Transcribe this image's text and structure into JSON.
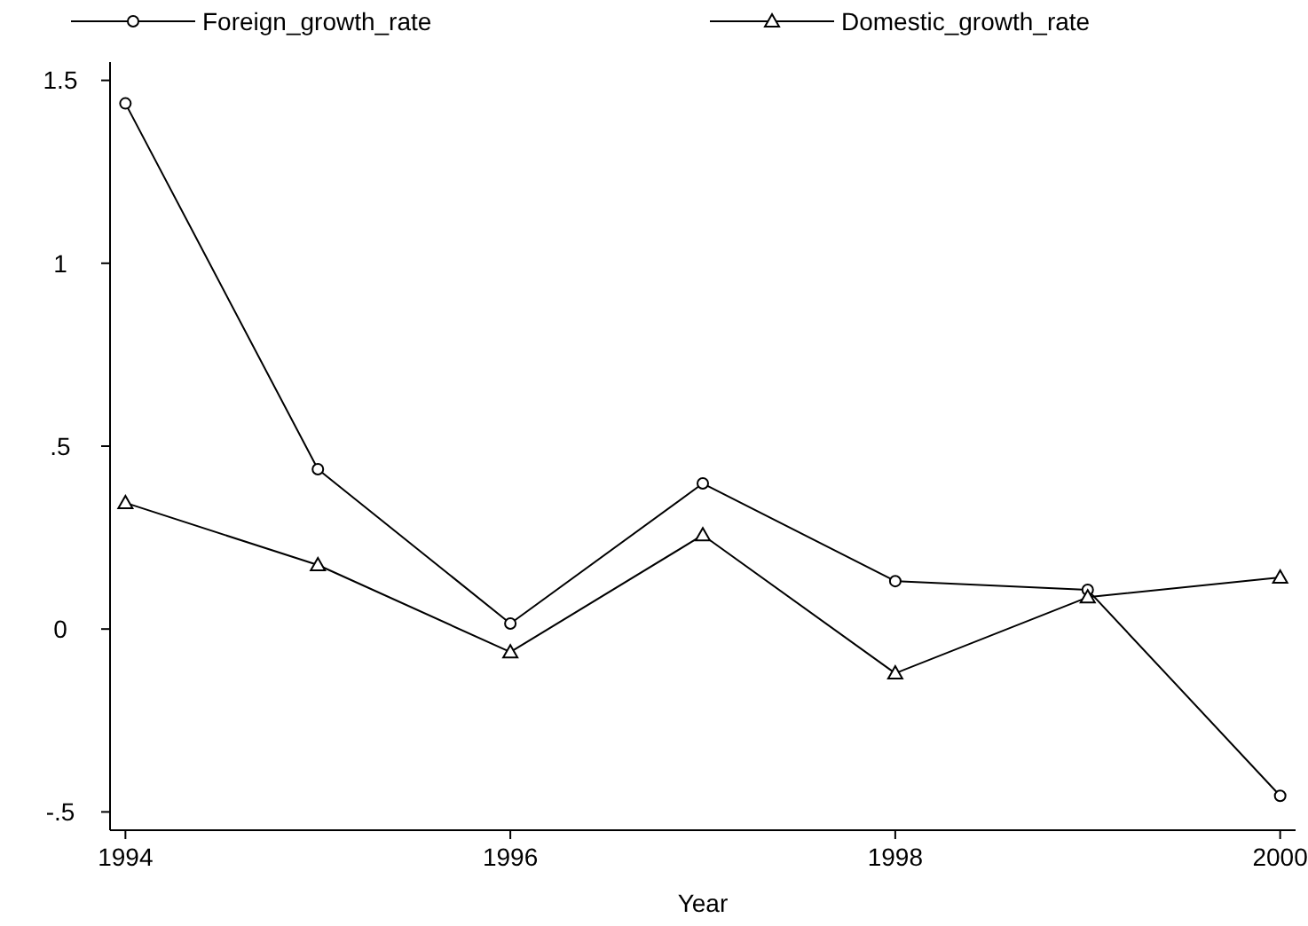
{
  "chart_data": {
    "type": "line",
    "xlabel": "Year",
    "x": [
      1994,
      1995,
      1996,
      1997,
      1998,
      1999,
      2000
    ],
    "series": [
      {
        "name": "Foreign_growth_rate",
        "color": "#000000",
        "marker": "circle",
        "values": [
          1.437,
          0.437,
          0.015,
          0.398,
          0.131,
          0.107,
          -0.456
        ]
      },
      {
        "name": "Domestic_growth_rate",
        "color": "#000000",
        "marker": "triangle",
        "values": [
          0.345,
          0.175,
          -0.063,
          0.257,
          -0.121,
          0.087,
          0.141
        ]
      }
    ],
    "xlim": [
      1993.92,
      2000.08
    ],
    "xticks": [
      1994,
      1996,
      1998,
      2000
    ],
    "ylim": [
      -0.55,
      1.55
    ],
    "yticks": [
      {
        "value": -0.5,
        "label": "-.5"
      },
      0,
      {
        "value": 0.5,
        "label": ".5"
      },
      1,
      1.5
    ],
    "grid": false,
    "legend": "top",
    "line_style": "solid"
  }
}
